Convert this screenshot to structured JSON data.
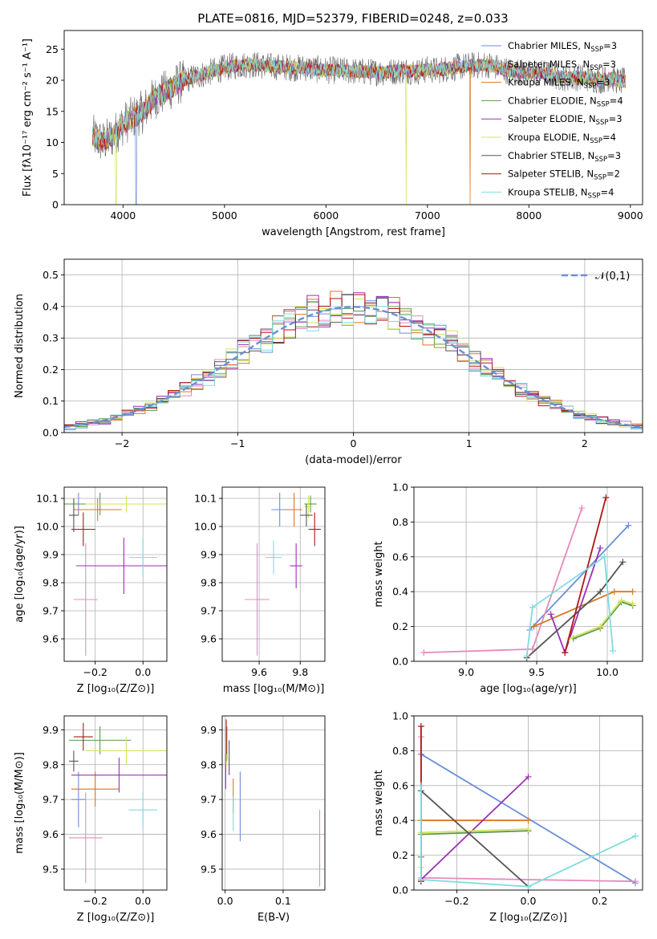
{
  "figure_title": "PLATE=0816, MJD=52379, FIBERID=0248, z=0.033",
  "models": [
    {
      "name": "Chabrier MILES, N$_{SSP}$=3",
      "label_main": "Chabrier MILES, N",
      "label_sub": "SSP",
      "label_end": "=3",
      "color": "#6a8fd8"
    },
    {
      "name": "Salpeter MILES",
      "label_main": "Salpeter MILES, N",
      "label_sub": "SSP",
      "label_end": "=3",
      "color": "#e589bd"
    },
    {
      "name": "Kroupa MILES",
      "label_main": "Kroupa MILES, N",
      "label_sub": "SSP",
      "label_end": "=3",
      "color": "#d97720"
    },
    {
      "name": "Chabrier ELODIE",
      "label_main": "Chabrier ELODIE, N",
      "label_sub": "SSP",
      "label_end": "=4",
      "color": "#5a9a4f"
    },
    {
      "name": "Salpeter ELODIE",
      "label_main": "Salpeter ELODIE, N",
      "label_sub": "SSP",
      "label_end": "=3",
      "color": "#9b30b4"
    },
    {
      "name": "Kroupa ELODIE",
      "label_main": "Kroupa ELODIE, N",
      "label_sub": "SSP",
      "label_end": "=4",
      "color": "#d6e35a"
    },
    {
      "name": "Chabrier STELIB",
      "label_main": "Chabrier STELIB, N",
      "label_sub": "SSP",
      "label_end": "=3",
      "color": "#555555"
    },
    {
      "name": "Salpeter STELIB",
      "label_main": "Salpeter STELIB, N",
      "label_sub": "SSP",
      "label_end": "=2",
      "color": "#b01515"
    },
    {
      "name": "Kroupa STELIB",
      "label_main": "Kroupa STELIB, N",
      "label_sub": "SSP",
      "label_end": "=4",
      "color": "#7fdce0"
    }
  ],
  "chart_data": [
    {
      "id": "spectrum",
      "type": "line",
      "xlabel": "wavelength [Angstrom, rest frame]",
      "ylabel": "Flux [fλ10⁻¹⁷ erg cm⁻² s⁻¹ A⁻¹]",
      "xlim": [
        3420,
        9120
      ],
      "ylim": [
        0,
        28
      ],
      "xticks": [
        4000,
        5000,
        6000,
        7000,
        8000,
        9000
      ],
      "yticks": [
        0,
        5,
        10,
        15,
        20,
        25
      ],
      "grid": false,
      "legend": "top-right",
      "continuum": {
        "x": [
          3700,
          3800,
          3900,
          4000,
          4100,
          4200,
          4300,
          4400,
          4500,
          4600,
          4700,
          4800,
          4900,
          5000,
          5100,
          5200,
          5300,
          5400,
          5500,
          5600,
          5700,
          5800,
          5900,
          6000,
          6100,
          6200,
          6300,
          6400,
          6500,
          6600,
          6700,
          6800,
          6900,
          7000,
          7100,
          7200,
          7300,
          7400,
          7500,
          7600,
          7700,
          7800,
          7900,
          8000,
          8100,
          8200,
          8300,
          8400,
          8500,
          8600,
          8700,
          8800,
          8900
        ],
        "y": [
          11,
          10,
          11,
          13,
          14,
          15,
          17,
          18,
          19,
          20,
          20.5,
          21,
          21.5,
          22,
          22.3,
          22.5,
          22.5,
          22.3,
          22.2,
          22.1,
          22.0,
          22.0,
          21.8,
          21.6,
          21.6,
          21.5,
          21.4,
          21.4,
          21.3,
          21.3,
          21.5,
          21.6,
          21.4,
          21.7,
          21.6,
          21.9,
          22.1,
          22.3,
          22.4,
          22.5,
          22.0,
          21.5,
          21.4,
          21.0,
          21.2,
          21.0,
          20.5,
          20.4,
          20.5,
          20.3,
          20.0,
          20.4,
          19.8
        ]
      },
      "dips": [
        {
          "x": 3930,
          "y": 0,
          "model": 5
        },
        {
          "x": 4130,
          "y": 0,
          "model": 0
        },
        {
          "x": 6790,
          "y": 0,
          "model": 5
        },
        {
          "x": 7420,
          "y": 0,
          "model": 2
        }
      ]
    },
    {
      "id": "residuals",
      "type": "histogram",
      "xlabel": "(data-model)/error",
      "ylabel": "Normed distribution",
      "xlim": [
        -2.5,
        2.5
      ],
      "ylim": [
        0,
        0.55
      ],
      "xticks": [
        -2,
        -1,
        0,
        1,
        2
      ],
      "yticks": [
        0.0,
        0.1,
        0.2,
        0.3,
        0.4,
        0.5
      ],
      "bin_width": 0.1,
      "grid": true,
      "reference": {
        "label": "𝒩(0,1)",
        "color": "#6a8fd8",
        "style": "dashed"
      },
      "legend": "top-right"
    },
    {
      "id": "age_vs_Z",
      "type": "errorbar",
      "xlabel": "Z [log₁₀(Z/Z⊙)]",
      "ylabel": "age  [log₁₀(age/yr)]",
      "xlim": [
        -0.33,
        0.1
      ],
      "ylim": [
        9.52,
        10.14
      ],
      "xticks": [
        -0.2,
        0.0
      ],
      "yticks": [
        9.6,
        9.7,
        9.8,
        9.9,
        10.0,
        10.1
      ],
      "grid": true,
      "points": [
        {
          "m": 0,
          "x": -0.27,
          "y": 10.08,
          "xerr": 0.03,
          "yerr": 0.04
        },
        {
          "m": 1,
          "x": -0.24,
          "y": 9.74,
          "xerr": 0.05,
          "yerr": 0.2
        },
        {
          "m": 2,
          "x": -0.19,
          "y": 10.06,
          "xerr": 0.1,
          "yerr": 0.04
        },
        {
          "m": 3,
          "x": -0.18,
          "y": 10.08,
          "xerr": 0.15,
          "yerr": 0.04
        },
        {
          "m": 4,
          "x": -0.08,
          "y": 9.86,
          "xerr": 0.2,
          "yerr": 0.1
        },
        {
          "m": 5,
          "x": -0.07,
          "y": 10.08,
          "xerr": 0.17,
          "yerr": 0.03
        },
        {
          "m": 6,
          "x": -0.29,
          "y": 10.04,
          "xerr": 0.02,
          "yerr": 0.06
        },
        {
          "m": 7,
          "x": -0.25,
          "y": 9.99,
          "xerr": 0.05,
          "yerr": 0.06
        },
        {
          "m": 8,
          "x": 0.0,
          "y": 9.89,
          "xerr": 0.06,
          "yerr": 0.07
        }
      ]
    },
    {
      "id": "age_vs_mass",
      "type": "errorbar",
      "xlabel": "mass [log₁₀(M/M⊙)]",
      "ylabel": "",
      "xlim": [
        9.42,
        9.92
      ],
      "ylim": [
        9.52,
        10.14
      ],
      "xticks": [
        9.6,
        9.8
      ],
      "yticks": [
        9.6,
        9.7,
        9.8,
        9.9,
        10.0,
        10.1
      ],
      "grid": true,
      "points": [
        {
          "m": 0,
          "x": 9.7,
          "y": 10.06,
          "xerr": 0.04,
          "yerr": 0.06
        },
        {
          "m": 1,
          "x": 9.59,
          "y": 9.74,
          "xerr": 0.06,
          "yerr": 0.2
        },
        {
          "m": 2,
          "x": 9.77,
          "y": 10.06,
          "xerr": 0.04,
          "yerr": 0.06
        },
        {
          "m": 3,
          "x": 9.85,
          "y": 10.08,
          "xerr": 0.03,
          "yerr": 0.03
        },
        {
          "m": 4,
          "x": 9.78,
          "y": 9.86,
          "xerr": 0.03,
          "yerr": 0.08
        },
        {
          "m": 5,
          "x": 9.84,
          "y": 10.07,
          "xerr": 0.02,
          "yerr": 0.04
        },
        {
          "m": 6,
          "x": 9.83,
          "y": 10.04,
          "xerr": 0.03,
          "yerr": 0.04
        },
        {
          "m": 7,
          "x": 9.87,
          "y": 9.99,
          "xerr": 0.03,
          "yerr": 0.06
        },
        {
          "m": 8,
          "x": 9.67,
          "y": 9.89,
          "xerr": 0.04,
          "yerr": 0.06
        }
      ]
    },
    {
      "id": "weight_vs_age",
      "type": "line",
      "xlabel": "age  [log₁₀(age/yr)]",
      "ylabel": "mass weight",
      "xlim": [
        8.63,
        10.25
      ],
      "ylim": [
        0,
        1.0
      ],
      "xticks": [
        9.0,
        9.5,
        10.0
      ],
      "yticks": [
        0.0,
        0.2,
        0.4,
        0.6,
        0.8,
        1.0
      ],
      "grid": true,
      "series": [
        {
          "m": 0,
          "x": [
            9.45,
            10.15
          ],
          "y": [
            0.18,
            0.78
          ]
        },
        {
          "m": 1,
          "x": [
            8.7,
            9.47,
            9.82
          ],
          "y": [
            0.05,
            0.07,
            0.88
          ]
        },
        {
          "m": 2,
          "x": [
            9.48,
            10.05,
            10.18
          ],
          "y": [
            0.2,
            0.4,
            0.4
          ]
        },
        {
          "m": 3,
          "x": [
            9.76,
            9.95,
            10.1,
            10.18
          ],
          "y": [
            0.13,
            0.19,
            0.34,
            0.32
          ]
        },
        {
          "m": 4,
          "x": [
            9.6,
            9.7,
            9.95
          ],
          "y": [
            0.27,
            0.05,
            0.65
          ]
        },
        {
          "m": 5,
          "x": [
            9.73,
            9.95,
            10.1,
            10.18
          ],
          "y": [
            0.13,
            0.2,
            0.35,
            0.33
          ]
        },
        {
          "m": 6,
          "x": [
            9.43,
            9.95,
            10.11
          ],
          "y": [
            0.02,
            0.4,
            0.57
          ]
        },
        {
          "m": 7,
          "x": [
            9.7,
            9.99
          ],
          "y": [
            0.05,
            0.94
          ]
        },
        {
          "m": 8,
          "x": [
            9.43,
            9.47,
            9.98,
            10.04
          ],
          "y": [
            0.03,
            0.31,
            0.6,
            0.06
          ]
        }
      ]
    },
    {
      "id": "mass_vs_Z",
      "type": "errorbar",
      "xlabel": "Z [log₁₀(Z/Z⊙)]",
      "ylabel": "mass [log₁₀(M/M⊙)]",
      "xlim": [
        -0.33,
        0.1
      ],
      "ylim": [
        9.44,
        9.94
      ],
      "xticks": [
        -0.2,
        0.0
      ],
      "yticks": [
        9.5,
        9.6,
        9.7,
        9.8,
        9.9
      ],
      "grid": true,
      "points": [
        {
          "m": 0,
          "x": -0.27,
          "y": 9.7,
          "xerr": 0.03,
          "yerr": 0.08
        },
        {
          "m": 1,
          "x": -0.24,
          "y": 9.59,
          "xerr": 0.07,
          "yerr": 0.13
        },
        {
          "m": 2,
          "x": -0.2,
          "y": 9.73,
          "xerr": 0.1,
          "yerr": 0.05
        },
        {
          "m": 3,
          "x": -0.18,
          "y": 9.87,
          "xerr": 0.13,
          "yerr": 0.04
        },
        {
          "m": 4,
          "x": -0.1,
          "y": 9.77,
          "xerr": 0.2,
          "yerr": 0.05
        },
        {
          "m": 5,
          "x": -0.07,
          "y": 9.84,
          "xerr": 0.17,
          "yerr": 0.04
        },
        {
          "m": 6,
          "x": -0.29,
          "y": 9.81,
          "xerr": 0.02,
          "yerr": 0.03
        },
        {
          "m": 7,
          "x": -0.25,
          "y": 9.88,
          "xerr": 0.04,
          "yerr": 0.04
        },
        {
          "m": 8,
          "x": 0.0,
          "y": 9.67,
          "xerr": 0.06,
          "yerr": 0.05
        }
      ]
    },
    {
      "id": "mass_vs_ebv",
      "type": "errorbar",
      "xlabel": "E(B-V)",
      "ylabel": "",
      "xlim": [
        -0.005,
        0.172
      ],
      "ylim": [
        9.44,
        9.94
      ],
      "xticks": [
        0.0,
        0.1
      ],
      "yticks": [
        9.5,
        9.6,
        9.7,
        9.8,
        9.9
      ],
      "grid": true,
      "points": [
        {
          "m": 0,
          "x": 0.026,
          "y": 9.68,
          "xerr": 0,
          "yerr": 0.1
        },
        {
          "m": 1,
          "x": 0.163,
          "y": 9.56,
          "xerr": 0,
          "yerr": 0.11
        },
        {
          "m": 2,
          "x": 0.014,
          "y": 9.71,
          "xerr": 0,
          "yerr": 0.05
        },
        {
          "m": 3,
          "x": 0.003,
          "y": 9.86,
          "xerr": 0,
          "yerr": 0.05
        },
        {
          "m": 4,
          "x": 0.001,
          "y": 9.78,
          "xerr": 0,
          "yerr": 0.05
        },
        {
          "m": 5,
          "x": 0.002,
          "y": 9.84,
          "xerr": 0,
          "yerr": 0.04
        },
        {
          "m": 6,
          "x": 0.007,
          "y": 9.82,
          "xerr": 0,
          "yerr": 0.05
        },
        {
          "m": 7,
          "x": 0.002,
          "y": 9.88,
          "xerr": 0,
          "yerr": 0.05
        },
        {
          "m": 8,
          "x": 0.014,
          "y": 9.66,
          "xerr": 0,
          "yerr": 0.05
        }
      ]
    },
    {
      "id": "weight_vs_Z",
      "type": "line",
      "xlabel": "Z [log₁₀(Z/Z⊙)]",
      "ylabel": "mass weight",
      "xlim": [
        -0.32,
        0.32
      ],
      "ylim": [
        0,
        1.0
      ],
      "xticks": [
        -0.2,
        0.0,
        0.2
      ],
      "yticks": [
        0.0,
        0.2,
        0.4,
        0.6,
        0.8,
        1.0
      ],
      "grid": true,
      "series": [
        {
          "m": 0,
          "x": [
            -0.3,
            0.3
          ],
          "y": [
            0.78,
            0.04
          ]
        },
        {
          "m": 1,
          "x": [
            -0.3,
            -0.3,
            0.3
          ],
          "y": [
            0.88,
            0.07,
            0.05
          ]
        },
        {
          "m": 2,
          "x": [
            -0.3,
            0.0
          ],
          "y": [
            0.4,
            0.4
          ]
        },
        {
          "m": 3,
          "x": [
            -0.3,
            -0.3,
            0.0
          ],
          "y": [
            0.19,
            0.32,
            0.34
          ]
        },
        {
          "m": 4,
          "x": [
            -0.3,
            -0.3,
            0.0
          ],
          "y": [
            0.05,
            0.06,
            0.65
          ]
        },
        {
          "m": 5,
          "x": [
            -0.3,
            -0.3,
            0.0
          ],
          "y": [
            0.13,
            0.33,
            0.35
          ]
        },
        {
          "m": 6,
          "x": [
            -0.3,
            0.0
          ],
          "y": [
            0.57,
            0.02
          ]
        },
        {
          "m": 7,
          "x": [
            -0.3,
            -0.3
          ],
          "y": [
            0.94,
            0.05
          ]
        },
        {
          "m": 8,
          "x": [
            -0.3,
            -0.3,
            0.0,
            0.3
          ],
          "y": [
            0.6,
            0.06,
            0.02,
            0.31
          ]
        }
      ]
    }
  ]
}
